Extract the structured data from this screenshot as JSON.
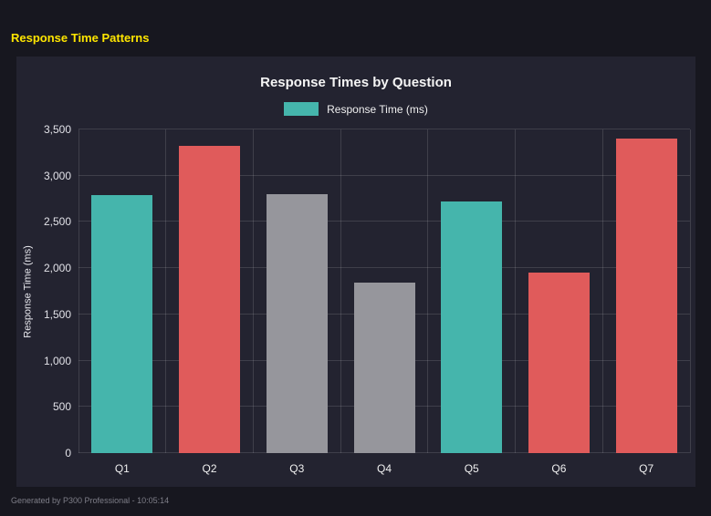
{
  "page": {
    "header": "Response Time Patterns",
    "footer": "Generated by P300 Professional - 10:05:14",
    "background": "#17171f",
    "panel_background": "#232330",
    "header_color": "#ffe600"
  },
  "chart_data": {
    "type": "bar",
    "title": "Response Times by Question",
    "legend": [
      {
        "label": "Response Time (ms)",
        "color": "#45b5ac"
      }
    ],
    "categories": [
      "Q1",
      "Q2",
      "Q3",
      "Q4",
      "Q5",
      "Q6",
      "Q7"
    ],
    "values": [
      2790,
      3320,
      2800,
      1840,
      2720,
      1950,
      3400
    ],
    "bar_colors": [
      "#45b5ac",
      "#e05b5b",
      "#96969c",
      "#96969c",
      "#45b5ac",
      "#e05b5b",
      "#e05b5b"
    ],
    "xlabel": "",
    "ylabel": "Response Time (ms)",
    "ylim": [
      0,
      3500
    ],
    "ytick_step": 500,
    "yticks": [
      "0",
      "500",
      "1,000",
      "1,500",
      "2,000",
      "2,500",
      "3,000",
      "3,500"
    ],
    "grid": true,
    "legend_position": "top"
  }
}
